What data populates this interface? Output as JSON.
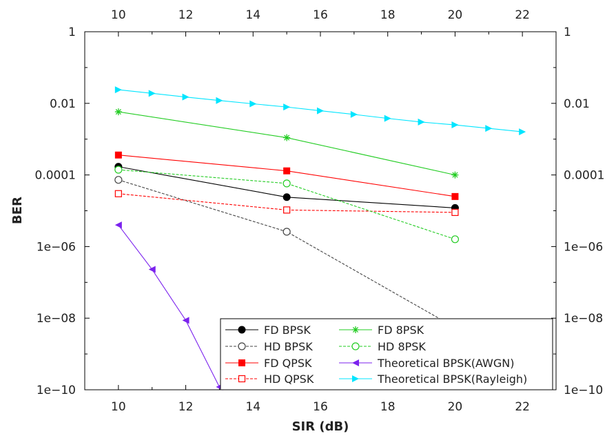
{
  "chart_data": {
    "type": "line",
    "xlabel": "SIR (dB)",
    "ylabel": "BER",
    "xlim": [
      9,
      23
    ],
    "ylim": [
      1e-10,
      1
    ],
    "yscale": "log",
    "x_ticks": [
      10,
      12,
      14,
      16,
      18,
      20,
      22
    ],
    "y_ticks": [
      {
        "value": 1,
        "label": "1"
      },
      {
        "value": 0.01,
        "label": "0.01"
      },
      {
        "value": 0.0001,
        "label": "0.0001"
      },
      {
        "value": 1e-06,
        "label": "1e−06"
      },
      {
        "value": 1e-08,
        "label": "1e−08"
      },
      {
        "value": 1e-10,
        "label": "1e−10"
      }
    ],
    "grid": false,
    "legend_position": "bottom-right",
    "series": [
      {
        "name": "FD BPSK",
        "color": "#000000",
        "marker": "circle-filled",
        "dash": "solid",
        "x": [
          10,
          15,
          20
        ],
        "y": [
          0.00017,
          2.4e-05,
          1.2e-05
        ]
      },
      {
        "name": "HD BPSK",
        "color": "#444444",
        "marker": "circle-open",
        "dash": "dashed",
        "x": [
          10,
          15,
          20
        ],
        "y": [
          7.3e-05,
          2.6e-06,
          5.5e-09
        ]
      },
      {
        "name": "FD QPSK",
        "color": "#ff0000",
        "marker": "square-filled",
        "dash": "solid",
        "x": [
          10,
          15,
          20
        ],
        "y": [
          0.00036,
          0.00013,
          2.5e-05
        ]
      },
      {
        "name": "HD QPSK",
        "color": "#ff0000",
        "marker": "square-open",
        "dash": "dashed",
        "x": [
          10,
          15,
          20
        ],
        "y": [
          3e-05,
          1.05e-05,
          9e-06
        ]
      },
      {
        "name": "FD 8PSK",
        "color": "#22cc22",
        "marker": "star",
        "dash": "solid",
        "x": [
          10,
          15,
          20
        ],
        "y": [
          0.0058,
          0.0011,
          0.0001
        ]
      },
      {
        "name": "HD 8PSK",
        "color": "#22cc22",
        "marker": "circle-open",
        "dash": "dashed",
        "x": [
          10,
          15,
          20
        ],
        "y": [
          0.00014,
          5.8e-05,
          1.6e-06
        ]
      },
      {
        "name": "Theoretical BPSK(AWGN)",
        "color": "#7b22ee",
        "marker": "triangle-left",
        "dash": "solid",
        "x": [
          10,
          11,
          12,
          13
        ],
        "y": [
          4e-06,
          2.3e-07,
          8.7e-09,
          1.2e-10
        ]
      },
      {
        "name": "Theoretical BPSK(Rayleigh)",
        "color": "#00e5ff",
        "marker": "triangle-right",
        "dash": "solid",
        "x": [
          10,
          11,
          12,
          13,
          14,
          15,
          16,
          17,
          18,
          19,
          20,
          21,
          22
        ],
        "y": [
          0.024,
          0.019,
          0.015,
          0.012,
          0.0097,
          0.0079,
          0.0062,
          0.0049,
          0.0038,
          0.003,
          0.0025,
          0.002,
          0.0016
        ]
      }
    ]
  }
}
